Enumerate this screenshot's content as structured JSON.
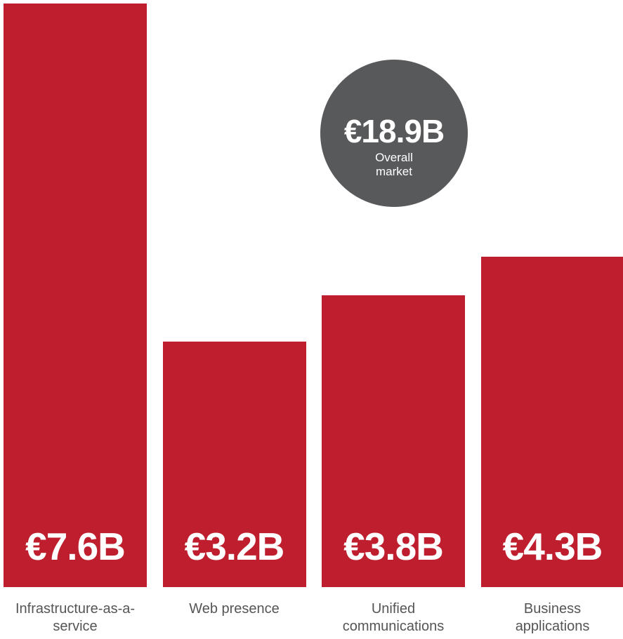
{
  "chart_data": {
    "type": "bar",
    "categories": [
      "Infrastructure-as-a-service",
      "Web presence",
      "Unified communications",
      "Business applications"
    ],
    "values": [
      7.6,
      3.2,
      3.8,
      4.3
    ],
    "value_labels": [
      "€7.6B",
      "€3.2B",
      "€3.8B",
      "€4.3B"
    ],
    "color": "#be1e2d",
    "total": {
      "label": "€18.9B",
      "caption": "Overall market",
      "color": "#58595b"
    }
  }
}
